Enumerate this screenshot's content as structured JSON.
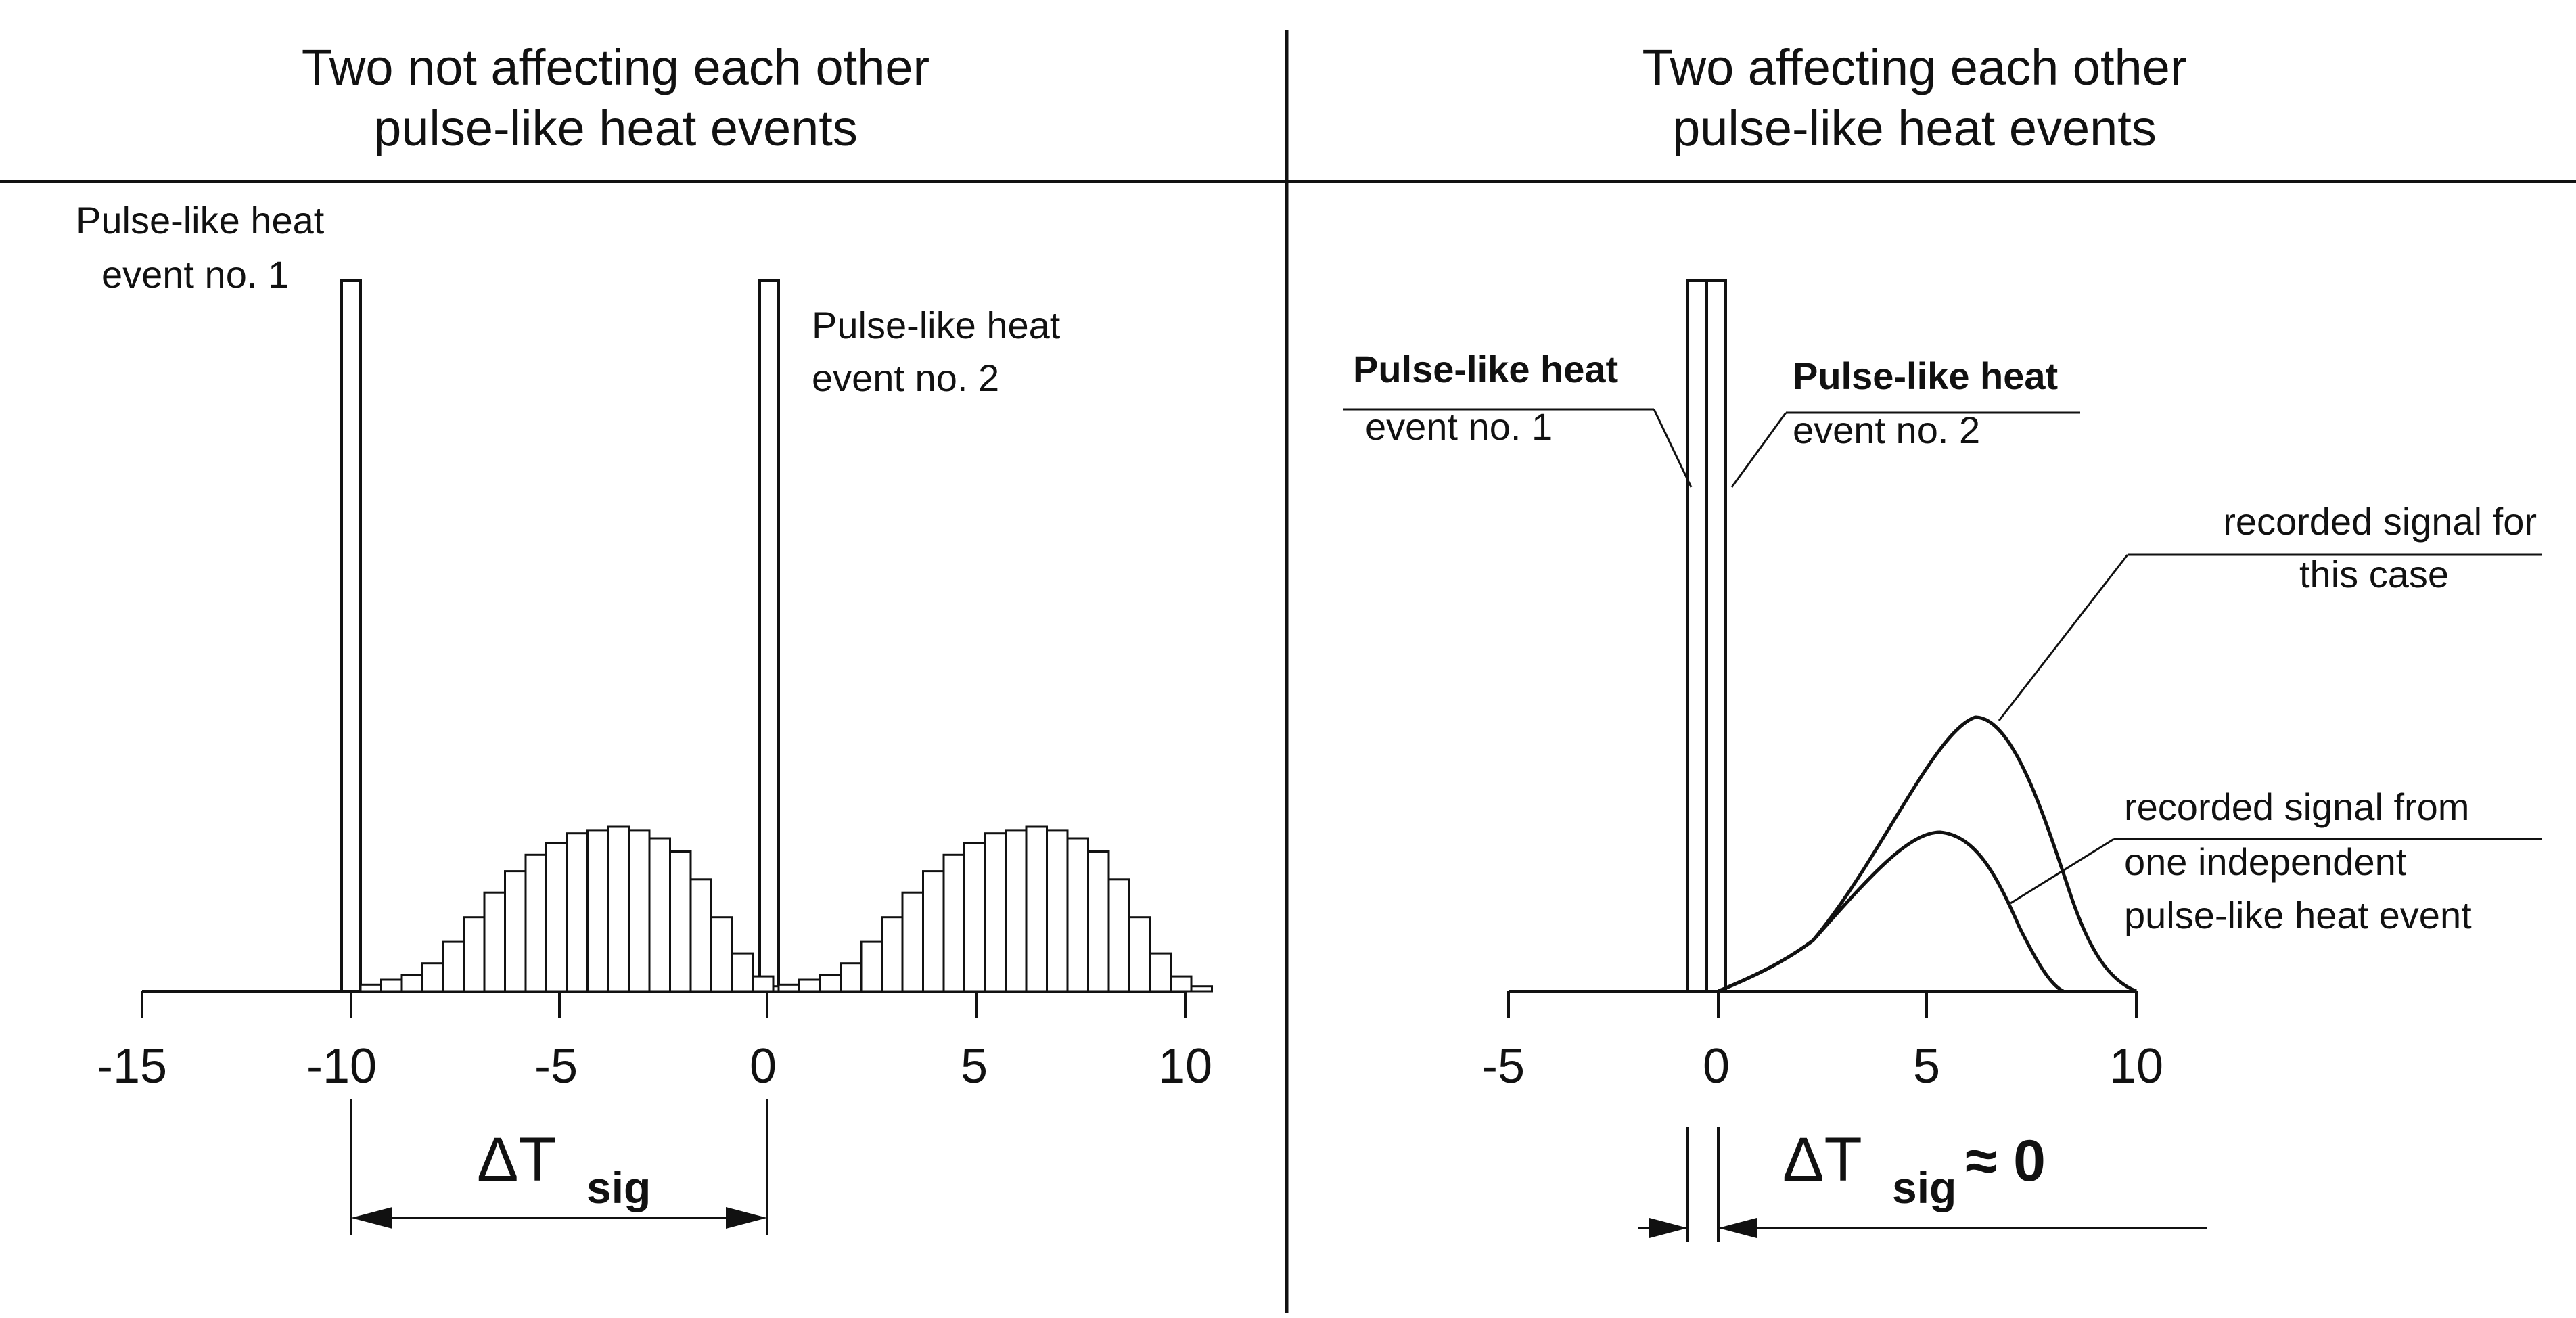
{
  "left_panel": {
    "title_line1": "Two not affecting each other",
    "title_line2": "pulse-like heat events",
    "event1_line1": "Pulse-like heat",
    "event1_line2": "event no. 1",
    "event2_line1": "Pulse-like heat",
    "event2_line2": "event no. 2",
    "ticks": [
      "-15",
      "-10",
      "-5",
      "0",
      "5",
      "10"
    ],
    "delta_main": "ΔT",
    "delta_sub": "sig"
  },
  "right_panel": {
    "title_line1": "Two affecting each other",
    "title_line2": "pulse-like heat events",
    "event1_line1": "Pulse-like heat",
    "event1_line2": "event no. 1",
    "event2_line1": "Pulse-like heat",
    "event2_line2": "event no. 2",
    "signal_case_line1": "recorded signal for",
    "signal_case_line2": "this case",
    "signal_indep_line1": "recorded signal from",
    "signal_indep_line2": "one independent",
    "signal_indep_line3": "pulse-like heat event",
    "ticks": [
      "-5",
      "0",
      "5",
      "10"
    ],
    "delta_main": "ΔT",
    "delta_sub": "sig",
    "delta_suffix": "≈ 0"
  },
  "histogram": {
    "left_event_centers": [
      -10,
      0
    ],
    "pulse_height": 1.0,
    "distribution_peak": 0.23,
    "distribution_width_note": "approx. gaussian-like, about 10 bins wide"
  },
  "right_curves": {
    "independent_peak": 0.23,
    "case_peak": 0.39
  },
  "colors": {
    "ink": "#111111",
    "background": "#ffffff"
  }
}
